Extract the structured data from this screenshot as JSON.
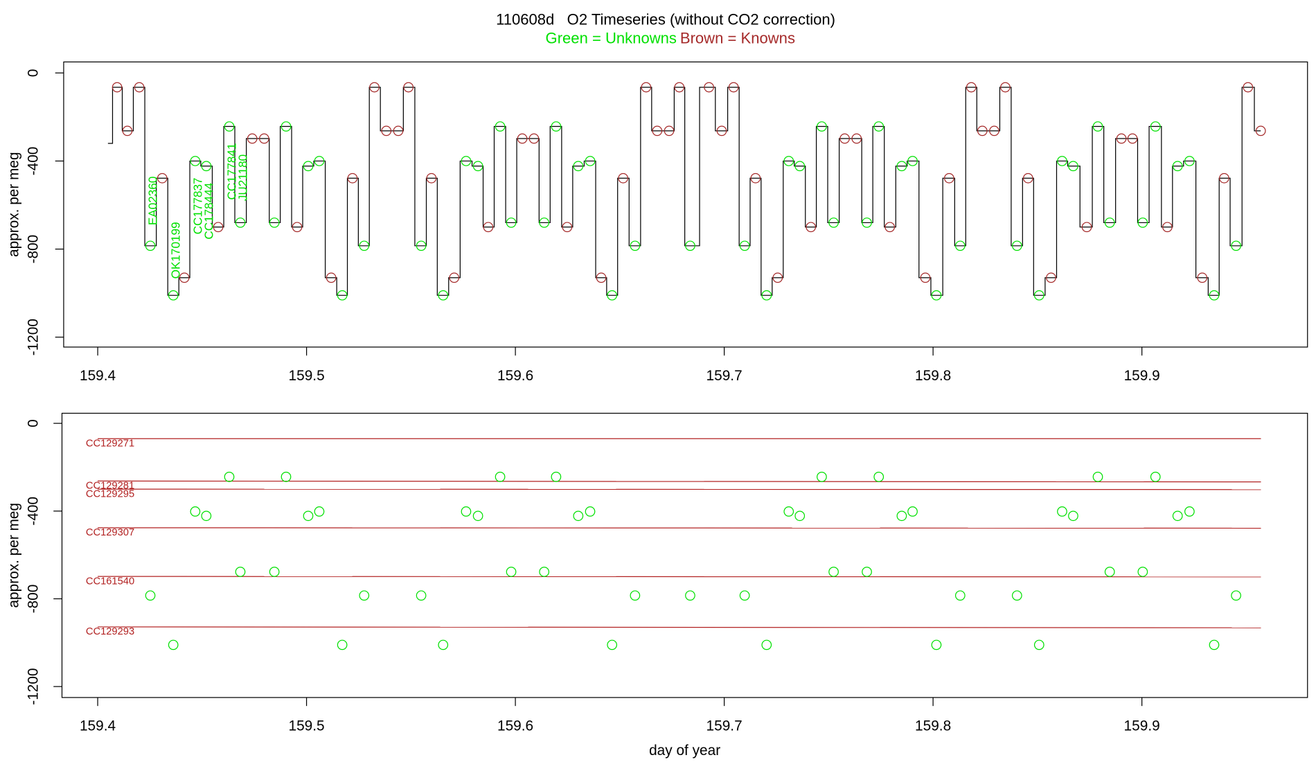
{
  "chart_data": [
    {
      "type": "line",
      "title": "110608d   O2 Timeseries (without CO2 correction)",
      "ylabel": "approx. per meg",
      "xlim": [
        159.3837,
        159.9793
      ],
      "ylim": [
        -1245,
        50
      ],
      "xticks": [
        159.4,
        159.5,
        159.6,
        159.7,
        159.8,
        159.9
      ],
      "yticks": [
        -1200,
        -800,
        -400,
        0
      ],
      "trace": {
        "color": "#000000",
        "drawstyle": "steps-mid",
        "x": [
          159.4049,
          159.4093,
          159.4142,
          159.4199,
          159.4252,
          159.4309,
          159.4362,
          159.4415,
          159.4467,
          159.452,
          159.4577,
          159.463,
          159.4683,
          159.474,
          159.4797,
          159.4846,
          159.4902,
          159.4955,
          159.5008,
          159.5061,
          159.5118,
          159.5171,
          159.522,
          159.5276,
          159.5325,
          159.5382,
          159.5439,
          159.5488,
          159.5549,
          159.5598,
          159.5654,
          159.5707,
          159.5764,
          159.5821,
          159.587,
          159.5927,
          159.598,
          159.6033,
          159.6089,
          159.6138,
          159.6195,
          159.6248,
          159.6301,
          159.6358,
          159.6411,
          159.6463,
          159.6516,
          159.6573,
          159.6626,
          159.6679,
          159.6736,
          159.6785,
          159.6837,
          159.6927,
          159.6988,
          159.7045,
          159.7098,
          159.715,
          159.7203,
          159.7256,
          159.7309,
          159.7362,
          159.7415,
          159.7467,
          159.7524,
          159.7577,
          159.7634,
          159.7683,
          159.774,
          159.7793,
          159.785,
          159.7902,
          159.7963,
          159.8016,
          159.8077,
          159.813,
          159.8183,
          159.8236,
          159.8293,
          159.8346,
          159.8402,
          159.8455,
          159.8508,
          159.8565,
          159.8618,
          159.8671,
          159.8736,
          159.8789,
          159.8846,
          159.8902,
          159.8955,
          159.9004,
          159.9065,
          159.9122,
          159.9171,
          159.9228,
          159.9289,
          159.9346,
          159.9394,
          159.9451,
          159.9508,
          159.9569
        ],
        "values": [
          -320,
          -65,
          -263,
          -65,
          -785,
          -478,
          -1010,
          -930,
          -400,
          -423,
          -700,
          -243,
          -680,
          -298,
          -298,
          -680,
          -243,
          -700,
          -423,
          -400,
          -930,
          -1010,
          -478,
          -785,
          -65,
          -263,
          -263,
          -65,
          -785,
          -478,
          -1010,
          -930,
          -400,
          -423,
          -700,
          -243,
          -680,
          -298,
          -298,
          -680,
          -243,
          -700,
          -423,
          -400,
          -930,
          -1010,
          -478,
          -785,
          -65,
          -263,
          -263,
          -65,
          -785,
          -65,
          -263,
          -65,
          -785,
          -478,
          -1010,
          -930,
          -400,
          -423,
          -700,
          -243,
          -680,
          -298,
          -298,
          -680,
          -243,
          -700,
          -423,
          -400,
          -930,
          -1010,
          -478,
          -785,
          -65,
          -263,
          -263,
          -65,
          -785,
          -478,
          -1010,
          -930,
          -400,
          -423,
          -700,
          -243,
          -680,
          -298,
          -298,
          -680,
          -243,
          -700,
          -423,
          -400,
          -930,
          -1010,
          -478,
          -785,
          -65,
          -263
        ]
      },
      "series": [
        {
          "name": "Green = Unknowns",
          "color": "#00e000",
          "x": [
            159.4252,
            159.4362,
            159.4467,
            159.452,
            159.463,
            159.4683,
            159.4846,
            159.4902,
            159.5008,
            159.5061,
            159.5171,
            159.5276,
            159.5549,
            159.5654,
            159.5764,
            159.5821,
            159.5927,
            159.598,
            159.6138,
            159.6195,
            159.6301,
            159.6358,
            159.6463,
            159.6573,
            159.6837,
            159.7098,
            159.7203,
            159.7309,
            159.7362,
            159.7467,
            159.7524,
            159.7683,
            159.774,
            159.785,
            159.7902,
            159.8016,
            159.813,
            159.8402,
            159.8508,
            159.8618,
            159.8671,
            159.8789,
            159.8846,
            159.9004,
            159.9065,
            159.9171,
            159.9228,
            159.9346,
            159.9451
          ],
          "values": [
            -785,
            -1010,
            -400,
            -423,
            -243,
            -680,
            -680,
            -243,
            -423,
            -400,
            -1010,
            -785,
            -785,
            -1010,
            -400,
            -423,
            -243,
            -680,
            -680,
            -243,
            -423,
            -400,
            -1010,
            -785,
            -785,
            -785,
            -1010,
            -400,
            -423,
            -243,
            -680,
            -680,
            -243,
            -423,
            -400,
            -1010,
            -785,
            -785,
            -1010,
            -400,
            -423,
            -243,
            -680,
            -680,
            -243,
            -423,
            -400,
            -1010,
            -785
          ],
          "labels": [
            "EA02360",
            "OK170199",
            "CC177837",
            "CC178444",
            "CC177841",
            "JU21180",
            null,
            null,
            null,
            null,
            null,
            null,
            null,
            null,
            null,
            null,
            null,
            null,
            null,
            null,
            null,
            null,
            null,
            null,
            null,
            null,
            null,
            null,
            null,
            null,
            null,
            null,
            null,
            null,
            null,
            null,
            null,
            null,
            null,
            null,
            null,
            null,
            null,
            null,
            null,
            null,
            null,
            null,
            null
          ]
        },
        {
          "name": "Brown = Knowns",
          "color": "#a52a2a",
          "x": [
            159.4093,
            159.4142,
            159.4199,
            159.4309,
            159.4415,
            159.4577,
            159.474,
            159.4797,
            159.4955,
            159.5118,
            159.522,
            159.5325,
            159.5382,
            159.5439,
            159.5488,
            159.5598,
            159.5707,
            159.587,
            159.6033,
            159.6089,
            159.6248,
            159.6411,
            159.6516,
            159.6626,
            159.6679,
            159.6736,
            159.6785,
            159.6927,
            159.6988,
            159.7045,
            159.715,
            159.7256,
            159.7415,
            159.7577,
            159.7634,
            159.7793,
            159.7963,
            159.8077,
            159.8183,
            159.8236,
            159.8293,
            159.8346,
            159.8455,
            159.8565,
            159.8736,
            159.8902,
            159.8955,
            159.9122,
            159.9289,
            159.9394,
            159.9508,
            159.9569
          ],
          "values": [
            -65,
            -263,
            -65,
            -478,
            -930,
            -700,
            -298,
            -298,
            -700,
            -930,
            -478,
            -65,
            -263,
            -263,
            -65,
            -478,
            -930,
            -700,
            -298,
            -298,
            -700,
            -930,
            -478,
            -65,
            -263,
            -263,
            -65,
            -65,
            -263,
            -65,
            -478,
            -930,
            -700,
            -298,
            -298,
            -700,
            -930,
            -478,
            -65,
            -263,
            -263,
            -65,
            -478,
            -930,
            -700,
            -298,
            -298,
            -700,
            -930,
            -478,
            -65,
            -263
          ]
        }
      ]
    },
    {
      "type": "scatter",
      "ylabel": "approx. per meg",
      "xlabel": "day of year",
      "xlim": [
        159.3829,
        159.9793
      ],
      "ylim": [
        -1250,
        46
      ],
      "xticks": [
        159.4,
        159.5,
        159.6,
        159.7,
        159.8,
        159.9
      ],
      "yticks": [
        -1200,
        -800,
        -400,
        0
      ],
      "series": [
        {
          "color": "#00e000",
          "x": [
            159.4252,
            159.4362,
            159.4467,
            159.452,
            159.463,
            159.4683,
            159.4846,
            159.4902,
            159.5008,
            159.5061,
            159.5171,
            159.5276,
            159.5549,
            159.5654,
            159.5764,
            159.5821,
            159.5927,
            159.598,
            159.6138,
            159.6195,
            159.6301,
            159.6358,
            159.6463,
            159.6573,
            159.6837,
            159.7098,
            159.7203,
            159.7309,
            159.7362,
            159.7467,
            159.7524,
            159.7683,
            159.774,
            159.785,
            159.7902,
            159.8016,
            159.813,
            159.8402,
            159.8508,
            159.8618,
            159.8671,
            159.8789,
            159.8846,
            159.9004,
            159.9065,
            159.9171,
            159.9228,
            159.9346,
            159.9451
          ],
          "values": [
            -785,
            -1010,
            -402,
            -422,
            -244,
            -677,
            -677,
            -244,
            -422,
            -402,
            -1010,
            -785,
            -785,
            -1010,
            -402,
            -422,
            -244,
            -677,
            -677,
            -244,
            -422,
            -402,
            -1010,
            -785,
            -785,
            -785,
            -1010,
            -402,
            -422,
            -244,
            -677,
            -677,
            -244,
            -422,
            -402,
            -1010,
            -785,
            -785,
            -1010,
            -402,
            -422,
            -244,
            -677,
            -677,
            -244,
            -422,
            -402,
            -1010,
            -785
          ]
        }
      ],
      "reference_lines": [
        {
          "name": "CC129271",
          "color": "#b22222",
          "x": [
            159.4,
            159.957
          ],
          "values": [
            -70,
            -70
          ]
        },
        {
          "name": "CC129281",
          "color": "#b22222",
          "x": [
            159.4,
            159.957
          ],
          "values": [
            -263,
            -267
          ]
        },
        {
          "name": "CC129295",
          "color": "#b22222",
          "x": [
            159.4,
            159.957
          ],
          "values": [
            -300,
            -302
          ]
        },
        {
          "name": "CC129307",
          "color": "#b22222",
          "x": [
            159.4,
            159.957
          ],
          "values": [
            -476,
            -478
          ]
        },
        {
          "name": "CC161540",
          "color": "#b22222",
          "x": [
            159.4,
            159.957
          ],
          "values": [
            -698,
            -700
          ]
        },
        {
          "name": "CC129293",
          "color": "#b22222",
          "x": [
            159.4,
            159.957
          ],
          "values": [
            -928,
            -932
          ]
        }
      ]
    }
  ]
}
